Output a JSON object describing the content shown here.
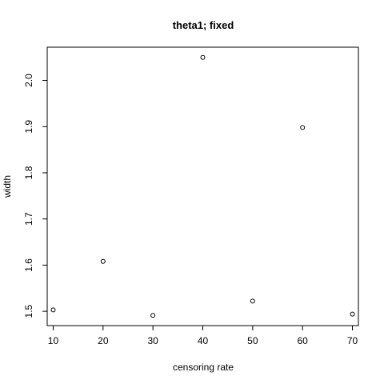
{
  "chart_data": {
    "type": "scatter",
    "title": "theta1; fixed",
    "xlabel": "censoring rate",
    "ylabel": "width",
    "x": [
      10,
      20,
      30,
      40,
      50,
      60,
      70
    ],
    "y": [
      1.503,
      1.608,
      1.491,
      2.05,
      1.522,
      1.898,
      1.494
    ],
    "xlim": [
      8.8,
      71.2
    ],
    "ylim": [
      1.469,
      2.072
    ],
    "xticks": [
      10,
      20,
      30,
      40,
      50,
      60,
      70
    ],
    "yticks": [
      1.5,
      1.6,
      1.7,
      1.8,
      1.9,
      2.0
    ],
    "xtick_labels": [
      "10",
      "20",
      "30",
      "40",
      "50",
      "60",
      "70"
    ],
    "ytick_labels": [
      "1.5",
      "1.6",
      "1.7",
      "1.8",
      "1.9",
      "2.0"
    ],
    "grid": false,
    "marker": "open-circle"
  }
}
